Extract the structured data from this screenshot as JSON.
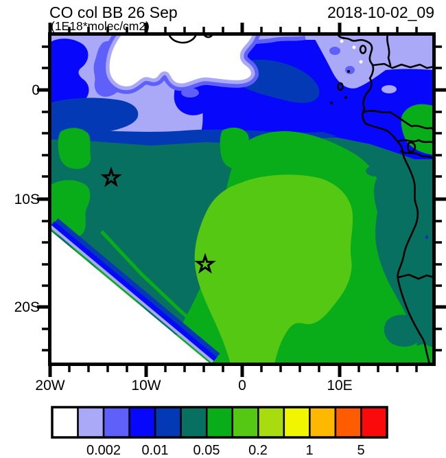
{
  "header": {
    "title": "CO col BB 26 Sep",
    "subtitle": "(1E18*molec/cm2)",
    "timestamp": "2018-10-02_09"
  },
  "colors": {
    "c1": "#ffffff",
    "c2": "#a9a9f7",
    "c3": "#5f5ffa",
    "c4": "#0708fb",
    "c5": "#0339b5",
    "c6": "#077061",
    "c7": "#09ad19",
    "c8": "#55c814",
    "c9": "#a9dc0f",
    "c10": "#f2f500",
    "c11": "#ffb800",
    "c12": "#ff5c00",
    "c13": "#fa0a0a",
    "line": "#000000"
  },
  "axes": {
    "x": {
      "labels": [
        "20W",
        "10W",
        "0",
        "10E"
      ]
    },
    "y": {
      "labels": [
        "0",
        "10S",
        "20S"
      ]
    }
  },
  "colorbar": {
    "labels": [
      "0.002",
      "0.01",
      "0.05",
      "0.2",
      "1",
      "5"
    ],
    "cell_colors": [
      "#ffffff",
      "#a9a9f7",
      "#5f5ffa",
      "#0708fb",
      "#0339b5",
      "#077061",
      "#09ad19",
      "#55c814",
      "#a9dc0f",
      "#f2f500",
      "#ffb800",
      "#ff5c00",
      "#fa0a0a"
    ]
  },
  "chart_data": {
    "type": "heatmap",
    "subtype": "filled-contour-map",
    "title": "CO col BB 26 Sep",
    "units": "1E18*molec/cm2",
    "timestamp": "2018-10-02_09",
    "x_axis": {
      "tick_labels": [
        "20W",
        "10W",
        "0",
        "10E"
      ],
      "approx_range": [
        "20W",
        "20E"
      ]
    },
    "y_axis": {
      "tick_labels": [
        "0",
        "10S",
        "20S"
      ],
      "approx_range": [
        "5N",
        "25S"
      ]
    },
    "colorbar": {
      "n_cells": 13,
      "labeled_boundaries": [
        0.002,
        0.01,
        0.05,
        0.2,
        1,
        5
      ],
      "cell_colors": [
        "#ffffff",
        "#a9a9f7",
        "#5f5ffa",
        "#0708fb",
        "#0339b5",
        "#077061",
        "#09ad19",
        "#55c814",
        "#a9dc0f",
        "#f2f500",
        "#ffb800",
        "#ff5c00",
        "#fa0a0a"
      ]
    },
    "markers": [
      {
        "symbol": "star",
        "approx_position": "14W, 8S"
      },
      {
        "symbol": "star",
        "approx_position": "4W, 16S"
      }
    ],
    "field_summary": [
      {
        "region": "north band (equator and above)",
        "range": "<0.001 to 0.01",
        "colors": "white/lavender/blue/navy"
      },
      {
        "region": "central Gulf of Guinea plume",
        "range": "0.02 to 0.05",
        "colors": "teal"
      },
      {
        "region": "southern plume core offshore Angola",
        "range": "0.05 to 0.2",
        "colors": "green/light green"
      },
      {
        "region": "southwest corner ocean",
        "range": "<0.001",
        "colors": "white"
      }
    ]
  }
}
